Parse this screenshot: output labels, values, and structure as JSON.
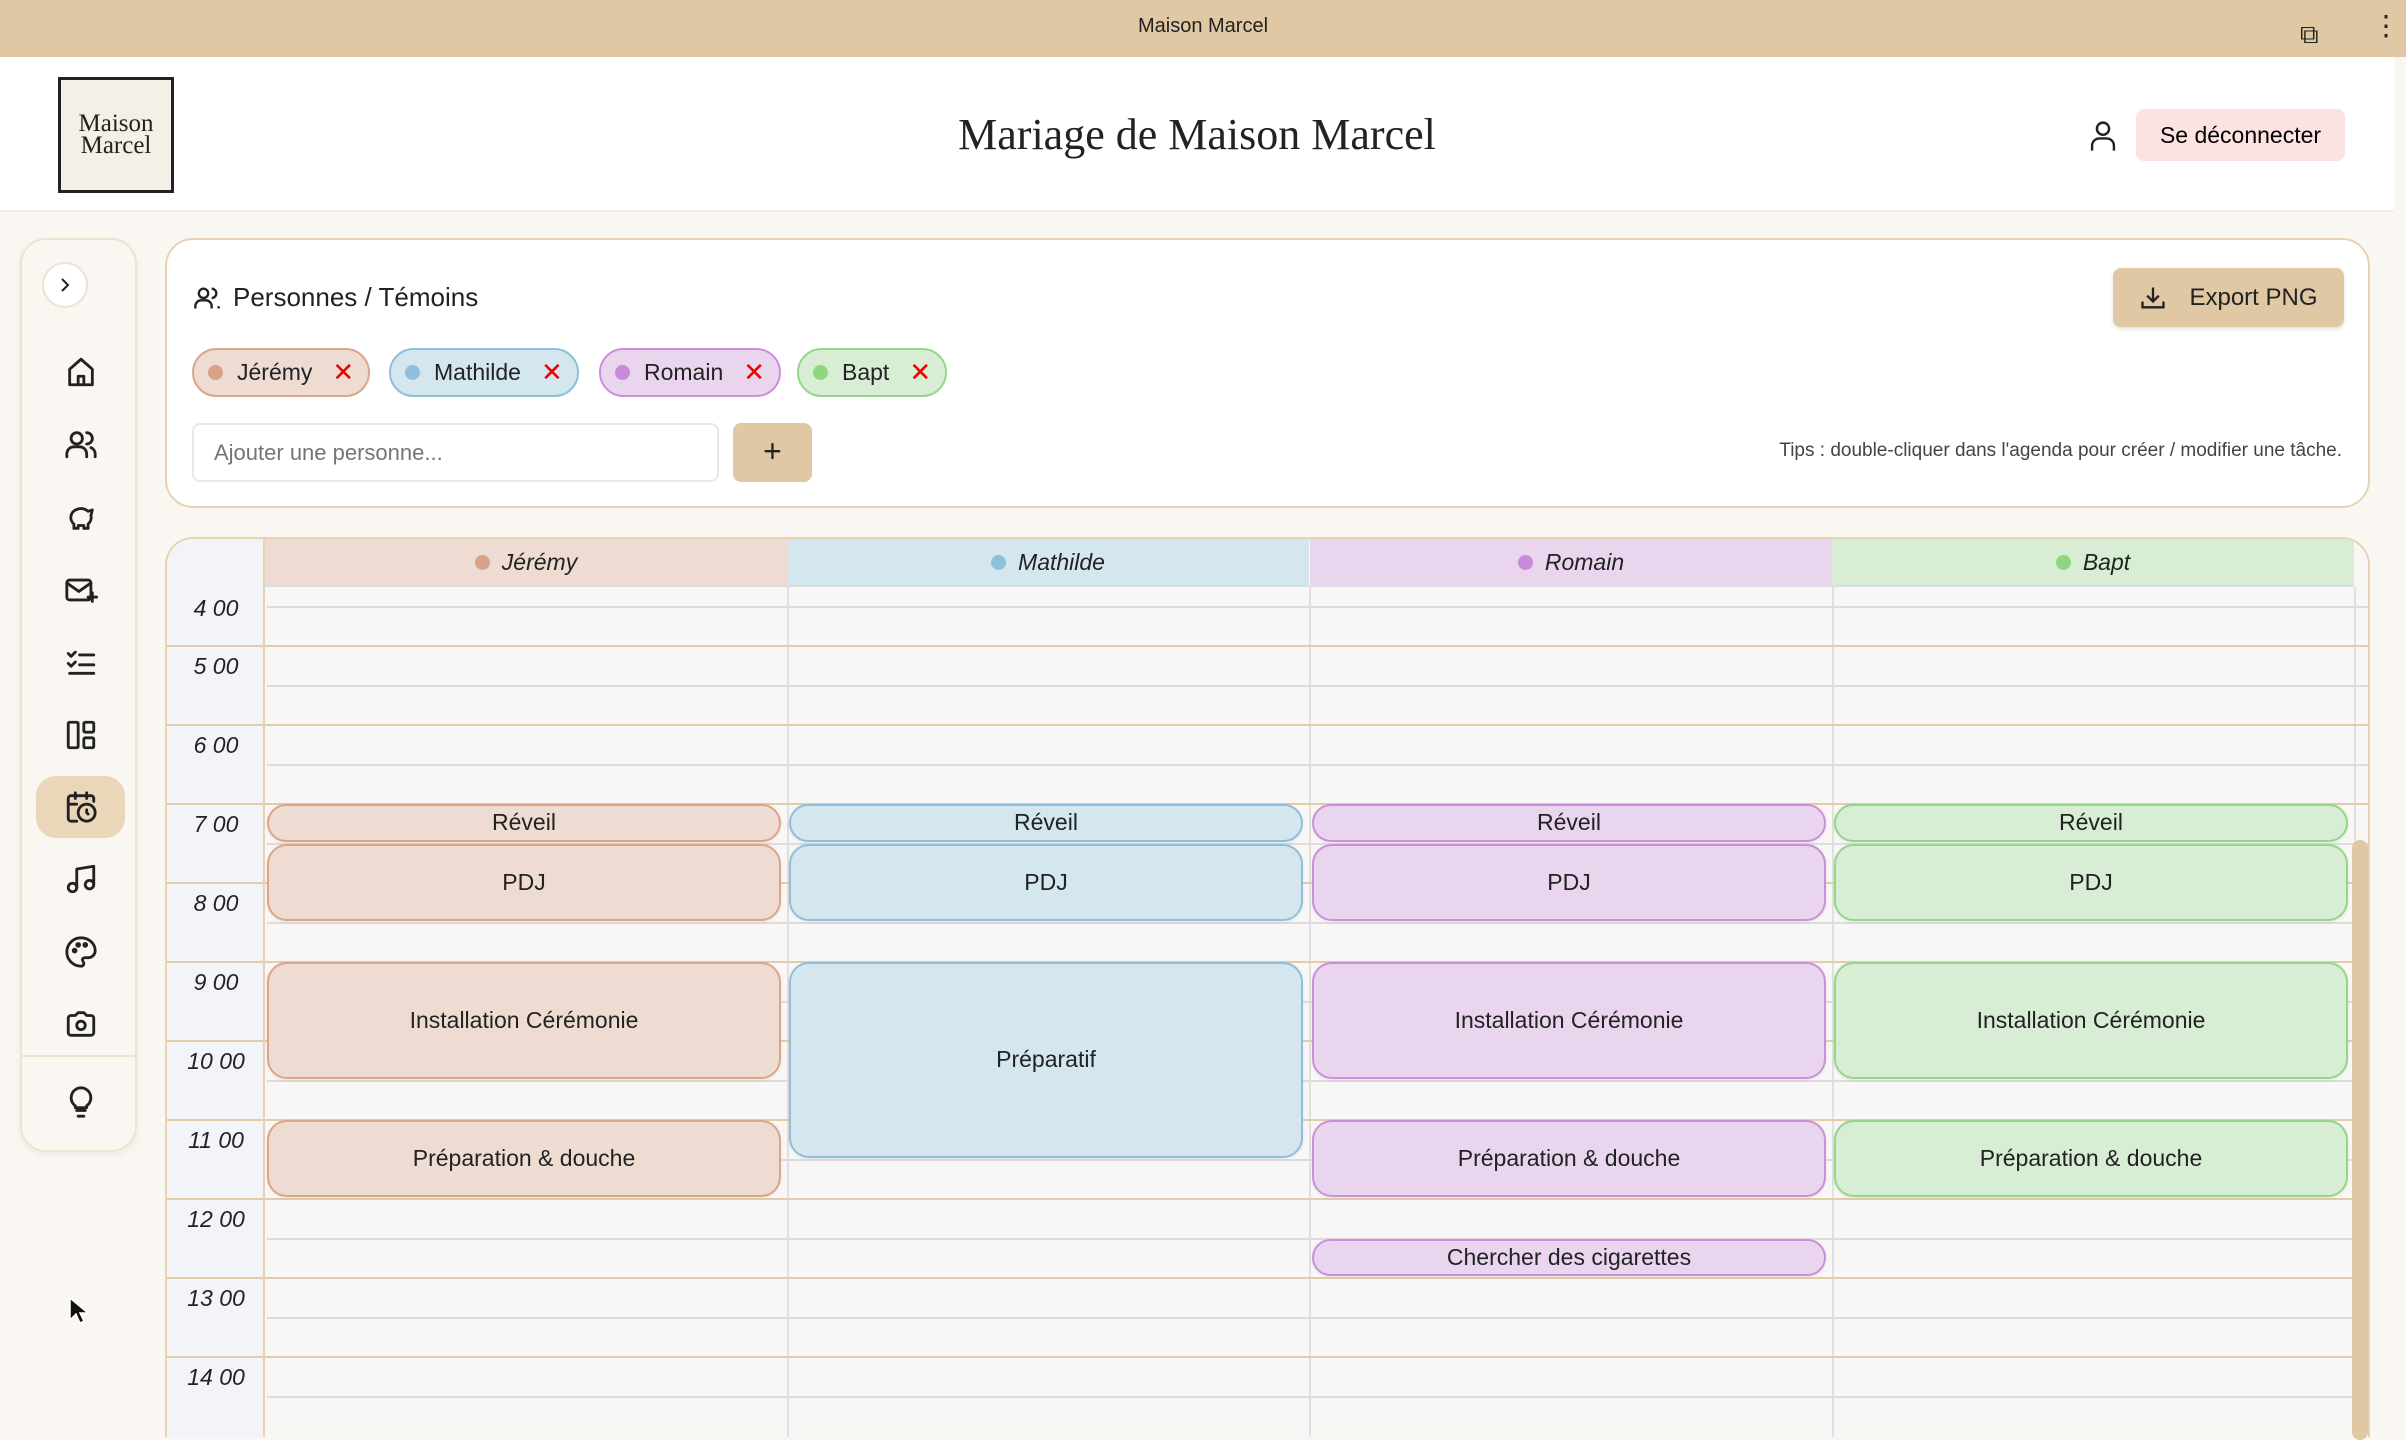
{
  "window": {
    "title": "Maison Marcel"
  },
  "header": {
    "logo": "Maison Marcel",
    "title": "Mariage de Maison Marcel",
    "logout": "Se déconnecter"
  },
  "sidebar": {
    "items": [
      "home",
      "people",
      "piggy-bank",
      "mail",
      "checklist",
      "layout",
      "calendar",
      "music",
      "palette",
      "camera",
      "lightbulb"
    ],
    "active": "calendar"
  },
  "panel": {
    "title": "Personnes / Témoins",
    "export_label": "Export PNG",
    "add_placeholder": "Ajouter une personne...",
    "add_label": "+",
    "tips": "Tips : double-cliquer dans l'agenda pour créer / modifier une tâche."
  },
  "people": [
    {
      "name": "Jérémy",
      "bg": "#eedcd3",
      "border": "#dba58a",
      "dot": "#d9a18a"
    },
    {
      "name": "Mathilde",
      "bg": "#d4e6ee",
      "border": "#8fbfdb",
      "dot": "#8ec0dc"
    },
    {
      "name": "Romain",
      "bg": "#ead5ee",
      "border": "#cc8fdb",
      "dot": "#c98ad8"
    },
    {
      "name": "Bapt",
      "bg": "#d8eed4",
      "border": "#94d68a",
      "dot": "#8fd67f"
    }
  ],
  "calendar": {
    "hours": [
      "4 00",
      "5 00",
      "6 00",
      "7 00",
      "8 00",
      "9 00",
      "10 00",
      "11 00",
      "12 00",
      "13 00",
      "14 00"
    ],
    "events": [
      {
        "person": 0,
        "title": "Réveil",
        "start": 7,
        "end": 7.5
      },
      {
        "person": 0,
        "title": "PDJ",
        "start": 7.5,
        "end": 8.5
      },
      {
        "person": 0,
        "title": "Installation Cérémonie",
        "start": 9,
        "end": 10.5
      },
      {
        "person": 0,
        "title": "Préparation & douche",
        "start": 11,
        "end": 12
      },
      {
        "person": 1,
        "title": "Réveil",
        "start": 7,
        "end": 7.5
      },
      {
        "person": 1,
        "title": "PDJ",
        "start": 7.5,
        "end": 8.5
      },
      {
        "person": 1,
        "title": "Préparatif",
        "start": 9,
        "end": 11.5
      },
      {
        "person": 2,
        "title": "Réveil",
        "start": 7,
        "end": 7.5
      },
      {
        "person": 2,
        "title": "PDJ",
        "start": 7.5,
        "end": 8.5
      },
      {
        "person": 2,
        "title": "Installation Cérémonie",
        "start": 9,
        "end": 10.5
      },
      {
        "person": 2,
        "title": "Préparation & douche",
        "start": 11,
        "end": 12
      },
      {
        "person": 2,
        "title": "Chercher des cigarettes",
        "start": 12.5,
        "end": 13
      },
      {
        "person": 3,
        "title": "Réveil",
        "start": 7,
        "end": 7.5
      },
      {
        "person": 3,
        "title": "PDJ",
        "start": 7.5,
        "end": 8.5
      },
      {
        "person": 3,
        "title": "Installation Cérémonie",
        "start": 9,
        "end": 10.5
      },
      {
        "person": 3,
        "title": "Préparation & douche",
        "start": 11,
        "end": 12
      }
    ]
  }
}
